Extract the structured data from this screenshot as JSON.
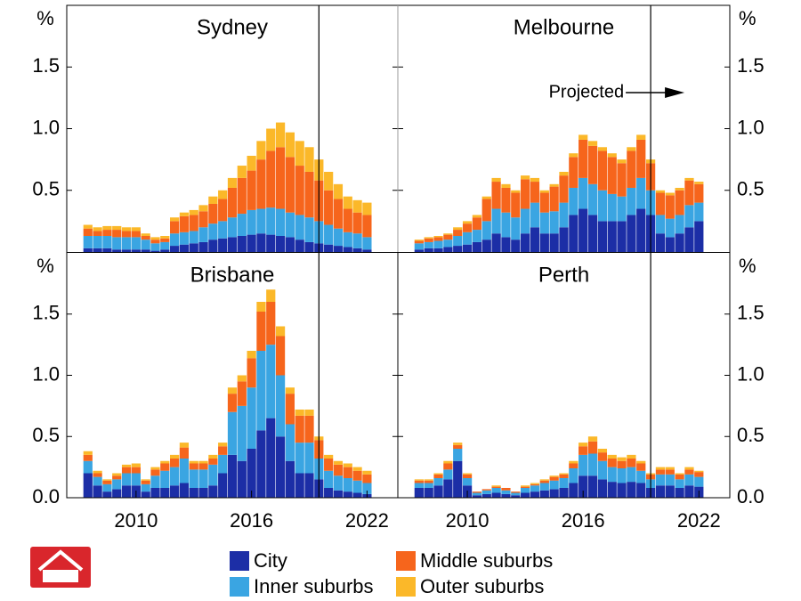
{
  "chart_data": [
    {
      "type": "bar",
      "stacked": true,
      "title": "Sydney",
      "ylabel": "%",
      "yaxis_side": "left",
      "projection_x": 2019.5,
      "x": [
        2007.5,
        2008,
        2008.5,
        2009,
        2009.5,
        2010,
        2010.5,
        2011,
        2011.5,
        2012,
        2012.5,
        2013,
        2013.5,
        2014,
        2014.5,
        2015,
        2015.5,
        2016,
        2016.5,
        2017,
        2017.5,
        2018,
        2018.5,
        2019,
        2019.5,
        2020,
        2020.5,
        2021,
        2021.5,
        2022
      ],
      "xlim": [
        2006.4,
        2023.6
      ],
      "ylim": [
        0,
        2
      ],
      "yticks": [
        0.5,
        {
          "value": 1,
          "label": "1.0"
        },
        1.5
      ],
      "series": [
        {
          "name": "City",
          "color": "#1c2ea6",
          "values": [
            0.03,
            0.03,
            0.03,
            0.02,
            0.02,
            0.02,
            0.02,
            0.01,
            0.02,
            0.05,
            0.06,
            0.07,
            0.08,
            0.1,
            0.11,
            0.12,
            0.13,
            0.14,
            0.15,
            0.14,
            0.13,
            0.12,
            0.1,
            0.08,
            0.07,
            0.06,
            0.05,
            0.04,
            0.03,
            0.02
          ]
        },
        {
          "name": "Inner suburbs",
          "color": "#3aa5e2",
          "values": [
            0.1,
            0.1,
            0.1,
            0.1,
            0.1,
            0.1,
            0.08,
            0.06,
            0.06,
            0.1,
            0.1,
            0.1,
            0.12,
            0.13,
            0.14,
            0.16,
            0.18,
            0.2,
            0.2,
            0.22,
            0.22,
            0.2,
            0.2,
            0.2,
            0.18,
            0.16,
            0.14,
            0.12,
            0.12,
            0.1
          ]
        },
        {
          "name": "Middle suburbs",
          "color": "#f6651c",
          "values": [
            0.06,
            0.04,
            0.05,
            0.06,
            0.05,
            0.05,
            0.03,
            0.03,
            0.03,
            0.1,
            0.13,
            0.13,
            0.13,
            0.16,
            0.18,
            0.24,
            0.29,
            0.32,
            0.4,
            0.46,
            0.5,
            0.45,
            0.4,
            0.37,
            0.33,
            0.28,
            0.24,
            0.19,
            0.17,
            0.18
          ]
        },
        {
          "name": "Outer suburbs",
          "color": "#fbb829",
          "values": [
            0.03,
            0.03,
            0.03,
            0.03,
            0.03,
            0.03,
            0.02,
            0.02,
            0.02,
            0.03,
            0.03,
            0.04,
            0.05,
            0.06,
            0.07,
            0.08,
            0.1,
            0.12,
            0.15,
            0.18,
            0.2,
            0.2,
            0.2,
            0.2,
            0.17,
            0.15,
            0.12,
            0.1,
            0.1,
            0.1
          ]
        }
      ]
    },
    {
      "type": "bar",
      "stacked": true,
      "title": "Melbourne",
      "ylabel": "%",
      "yaxis_side": "right",
      "projection_x": 2019.5,
      "annotation": "Projected",
      "x": [
        2007.5,
        2008,
        2008.5,
        2009,
        2009.5,
        2010,
        2010.5,
        2011,
        2011.5,
        2012,
        2012.5,
        2013,
        2013.5,
        2014,
        2014.5,
        2015,
        2015.5,
        2016,
        2016.5,
        2017,
        2017.5,
        2018,
        2018.5,
        2019,
        2019.5,
        2020,
        2020.5,
        2021,
        2021.5,
        2022
      ],
      "xlim": [
        2006.4,
        2023.6
      ],
      "ylim": [
        0,
        2
      ],
      "yticks": [
        0.5,
        {
          "value": 1,
          "label": "1.0"
        },
        1.5
      ],
      "series": [
        {
          "name": "City",
          "color": "#1c2ea6",
          "values": [
            0.02,
            0.03,
            0.03,
            0.04,
            0.05,
            0.06,
            0.08,
            0.1,
            0.15,
            0.12,
            0.1,
            0.15,
            0.2,
            0.15,
            0.15,
            0.2,
            0.3,
            0.35,
            0.3,
            0.25,
            0.25,
            0.25,
            0.3,
            0.35,
            0.3,
            0.15,
            0.12,
            0.15,
            0.2,
            0.25
          ]
        },
        {
          "name": "Inner suburbs",
          "color": "#3aa5e2",
          "values": [
            0.05,
            0.05,
            0.06,
            0.06,
            0.08,
            0.1,
            0.1,
            0.15,
            0.2,
            0.2,
            0.18,
            0.2,
            0.2,
            0.17,
            0.18,
            0.2,
            0.22,
            0.25,
            0.25,
            0.25,
            0.22,
            0.2,
            0.22,
            0.25,
            0.2,
            0.15,
            0.15,
            0.15,
            0.18,
            0.15
          ]
        },
        {
          "name": "Middle suburbs",
          "color": "#f6651c",
          "values": [
            0.02,
            0.03,
            0.03,
            0.04,
            0.05,
            0.07,
            0.1,
            0.18,
            0.22,
            0.2,
            0.2,
            0.24,
            0.17,
            0.16,
            0.2,
            0.22,
            0.25,
            0.31,
            0.31,
            0.32,
            0.3,
            0.27,
            0.3,
            0.31,
            0.22,
            0.18,
            0.19,
            0.2,
            0.2,
            0.15
          ]
        },
        {
          "name": "Outer suburbs",
          "color": "#fbb829",
          "values": [
            0.01,
            0.01,
            0.01,
            0.01,
            0.02,
            0.02,
            0.02,
            0.02,
            0.03,
            0.03,
            0.02,
            0.03,
            0.03,
            0.02,
            0.02,
            0.03,
            0.03,
            0.04,
            0.04,
            0.03,
            0.03,
            0.03,
            0.03,
            0.04,
            0.03,
            0.02,
            0.02,
            0.02,
            0.02,
            0.02
          ]
        }
      ]
    },
    {
      "type": "bar",
      "stacked": true,
      "title": "Brisbane",
      "ylabel": "%",
      "yaxis_side": "left",
      "projection_x": 2019.5,
      "x": [
        2007.5,
        2008,
        2008.5,
        2009,
        2009.5,
        2010,
        2010.5,
        2011,
        2011.5,
        2012,
        2012.5,
        2013,
        2013.5,
        2014,
        2014.5,
        2015,
        2015.5,
        2016,
        2016.5,
        2017,
        2017.5,
        2018,
        2018.5,
        2019,
        2019.5,
        2020,
        2020.5,
        2021,
        2021.5,
        2022
      ],
      "xlim": [
        2006.4,
        2023.6
      ],
      "xticks": [
        2010,
        2016,
        2022
      ],
      "ylim": [
        0,
        2
      ],
      "yticks": [
        {
          "value": 0,
          "label": "0.0"
        },
        0.5,
        {
          "value": 1,
          "label": "1.0"
        },
        1.5
      ],
      "series": [
        {
          "name": "City",
          "color": "#1c2ea6",
          "values": [
            0.2,
            0.1,
            0.05,
            0.07,
            0.1,
            0.1,
            0.05,
            0.08,
            0.08,
            0.1,
            0.12,
            0.08,
            0.08,
            0.1,
            0.2,
            0.35,
            0.3,
            0.4,
            0.55,
            0.65,
            0.5,
            0.3,
            0.2,
            0.2,
            0.15,
            0.08,
            0.06,
            0.05,
            0.04,
            0.03
          ]
        },
        {
          "name": "Inner suburbs",
          "color": "#3aa5e2",
          "values": [
            0.1,
            0.07,
            0.06,
            0.08,
            0.1,
            0.1,
            0.06,
            0.1,
            0.14,
            0.15,
            0.2,
            0.15,
            0.15,
            0.17,
            0.15,
            0.35,
            0.45,
            0.5,
            0.65,
            0.6,
            0.5,
            0.3,
            0.25,
            0.25,
            0.17,
            0.14,
            0.12,
            0.11,
            0.1,
            0.09
          ]
        },
        {
          "name": "Middle suburbs",
          "color": "#f6651c",
          "values": [
            0.05,
            0.03,
            0.03,
            0.03,
            0.05,
            0.05,
            0.03,
            0.05,
            0.06,
            0.07,
            0.09,
            0.05,
            0.05,
            0.05,
            0.07,
            0.15,
            0.2,
            0.24,
            0.32,
            0.35,
            0.32,
            0.25,
            0.22,
            0.22,
            0.15,
            0.1,
            0.09,
            0.09,
            0.08,
            0.07
          ]
        },
        {
          "name": "Outer suburbs",
          "color": "#fbb829",
          "values": [
            0.03,
            0.02,
            0.01,
            0.02,
            0.02,
            0.03,
            0.01,
            0.02,
            0.02,
            0.03,
            0.04,
            0.02,
            0.02,
            0.03,
            0.03,
            0.05,
            0.05,
            0.06,
            0.08,
            0.1,
            0.08,
            0.05,
            0.05,
            0.05,
            0.03,
            0.03,
            0.03,
            0.03,
            0.03,
            0.03
          ]
        }
      ]
    },
    {
      "type": "bar",
      "stacked": true,
      "title": "Perth",
      "ylabel": "%",
      "yaxis_side": "right",
      "projection_x": 2019.5,
      "x": [
        2007.5,
        2008,
        2008.5,
        2009,
        2009.5,
        2010,
        2010.5,
        2011,
        2011.5,
        2012,
        2012.5,
        2013,
        2013.5,
        2014,
        2014.5,
        2015,
        2015.5,
        2016,
        2016.5,
        2017,
        2017.5,
        2018,
        2018.5,
        2019,
        2019.5,
        2020,
        2020.5,
        2021,
        2021.5,
        2022
      ],
      "xlim": [
        2006.4,
        2023.6
      ],
      "xticks": [
        2010,
        2016,
        2022
      ],
      "ylim": [
        0,
        2
      ],
      "yticks": [
        {
          "value": 0,
          "label": "0.0"
        },
        0.5,
        {
          "value": 1,
          "label": "1.0"
        },
        1.5
      ],
      "series": [
        {
          "name": "City",
          "color": "#1c2ea6",
          "values": [
            0.08,
            0.08,
            0.1,
            0.15,
            0.3,
            0.1,
            0.02,
            0.03,
            0.04,
            0.03,
            0.02,
            0.04,
            0.05,
            0.06,
            0.07,
            0.08,
            0.12,
            0.18,
            0.18,
            0.15,
            0.13,
            0.12,
            0.13,
            0.12,
            0.08,
            0.1,
            0.1,
            0.08,
            0.1,
            0.09
          ]
        },
        {
          "name": "Inner suburbs",
          "color": "#3aa5e2",
          "values": [
            0.04,
            0.04,
            0.06,
            0.08,
            0.1,
            0.06,
            0.02,
            0.03,
            0.04,
            0.03,
            0.02,
            0.04,
            0.05,
            0.06,
            0.07,
            0.08,
            0.12,
            0.17,
            0.18,
            0.15,
            0.12,
            0.12,
            0.12,
            0.1,
            0.07,
            0.09,
            0.09,
            0.07,
            0.09,
            0.08
          ]
        },
        {
          "name": "Middle suburbs",
          "color": "#f6651c",
          "values": [
            0.02,
            0.02,
            0.03,
            0.05,
            0.03,
            0.03,
            0.01,
            0.01,
            0.01,
            0.02,
            0.01,
            0.01,
            0.01,
            0.02,
            0.03,
            0.03,
            0.04,
            0.07,
            0.1,
            0.07,
            0.07,
            0.06,
            0.07,
            0.06,
            0.04,
            0.04,
            0.04,
            0.04,
            0.04,
            0.04
          ]
        },
        {
          "name": "Outer suburbs",
          "color": "#fbb829",
          "values": [
            0.01,
            0.01,
            0.01,
            0.02,
            0.02,
            0.01,
            0,
            0,
            0.01,
            0,
            0,
            0.01,
            0.01,
            0.01,
            0.01,
            0.01,
            0.02,
            0.03,
            0.04,
            0.03,
            0.03,
            0.03,
            0.03,
            0.02,
            0.01,
            0.02,
            0.02,
            0.01,
            0.02,
            0.01
          ]
        }
      ]
    }
  ]
}
